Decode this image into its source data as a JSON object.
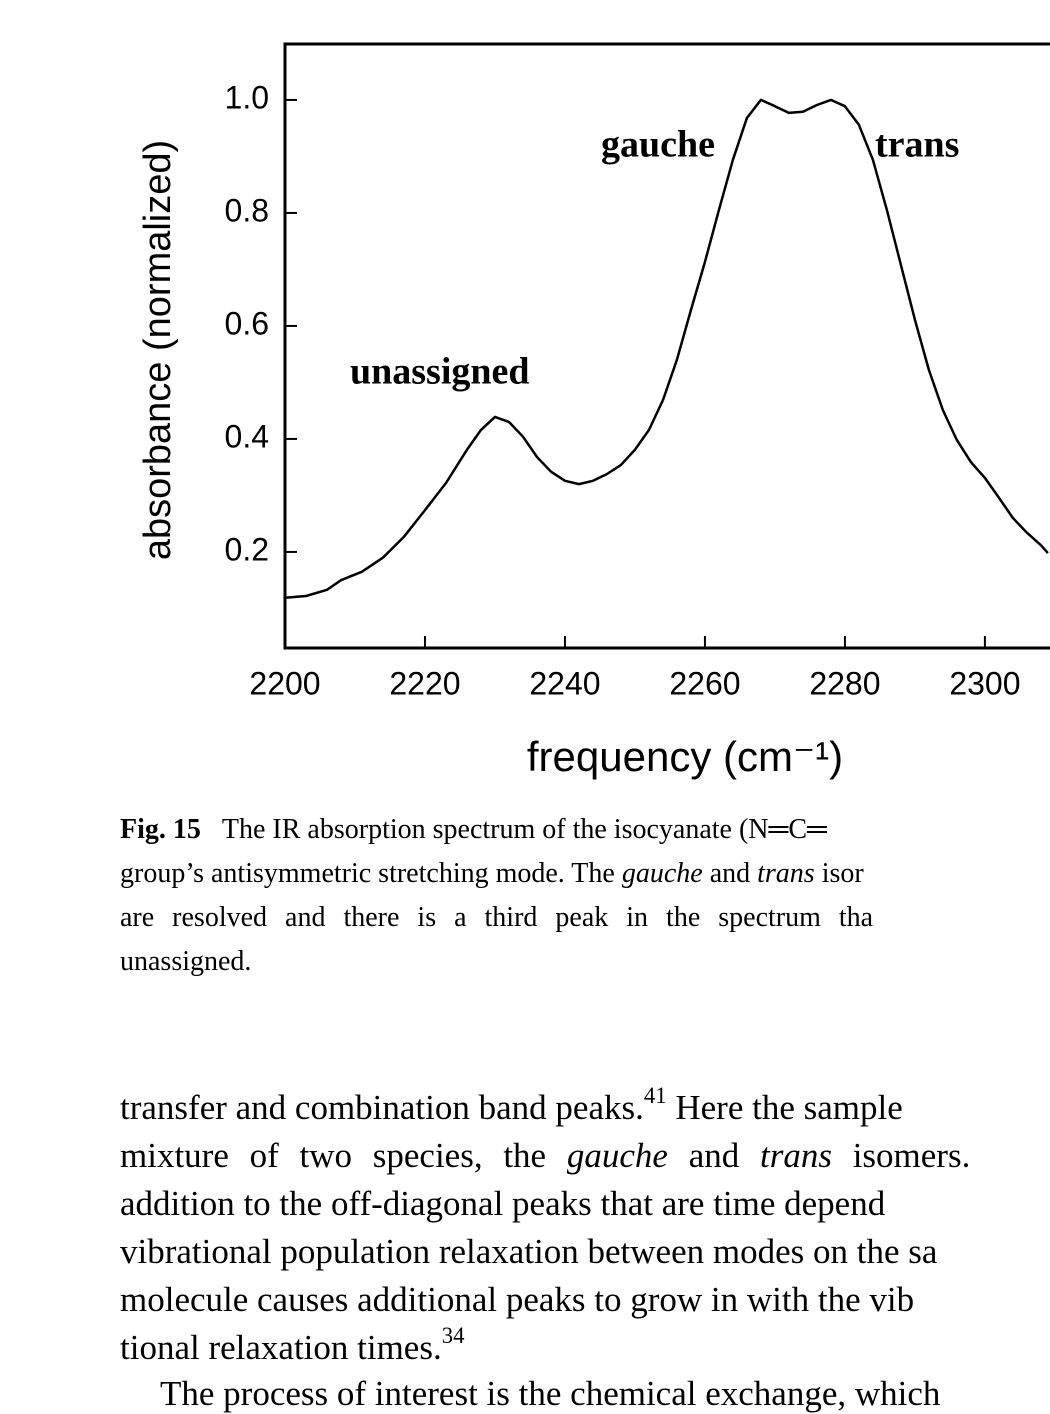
{
  "chart_data": {
    "type": "line",
    "y_label": "absorbance (normalized)",
    "x_label": "frequency (cm⁻¹)",
    "annotations": [
      "gauche",
      "trans",
      "unassigned"
    ],
    "color": "#000000",
    "x": [
      2200,
      2203,
      2206,
      2208,
      2211,
      2214,
      2217,
      2220,
      2223,
      2226,
      2228,
      2230,
      2232,
      2234,
      2236,
      2238,
      2240,
      2242,
      2244,
      2246,
      2248,
      2250,
      2252,
      2254,
      2256,
      2258,
      2260,
      2262,
      2264,
      2266,
      2268,
      2270,
      2272,
      2274,
      2276,
      2278,
      2280,
      2282,
      2284,
      2286,
      2288,
      2290,
      2292,
      2294,
      2296,
      2298,
      2300,
      2302,
      2304,
      2306,
      2308,
      2309
    ],
    "values": [
      0.119,
      0.122,
      0.133,
      0.15,
      0.165,
      0.19,
      0.227,
      0.274,
      0.322,
      0.381,
      0.416,
      0.439,
      0.43,
      0.404,
      0.368,
      0.342,
      0.326,
      0.32,
      0.326,
      0.338,
      0.354,
      0.381,
      0.416,
      0.469,
      0.54,
      0.628,
      0.713,
      0.805,
      0.894,
      0.968,
      1.0,
      0.989,
      0.977,
      0.979,
      0.991,
      1.0,
      0.989,
      0.956,
      0.894,
      0.805,
      0.708,
      0.611,
      0.522,
      0.451,
      0.398,
      0.359,
      0.331,
      0.296,
      0.26,
      0.234,
      0.212,
      0.198
    ],
    "xlim": [
      2200,
      2309.3
    ],
    "ylim": [
      0.03,
      1.099
    ],
    "xticks": [
      2200,
      2220,
      2240,
      2260,
      2280,
      2300
    ],
    "yticks": [
      {
        "value": 0.2,
        "label": "0.2"
      },
      {
        "value": 0.4,
        "label": "0.4"
      },
      {
        "value": 0.6,
        "label": "0.6"
      },
      {
        "value": 0.8,
        "label": "0.8"
      },
      {
        "value": 1.0,
        "label": "1.0"
      }
    ]
  },
  "caption": {
    "label": "Fig. 15",
    "lines": [
      [
        "The IR absorption spectrum of the isocyanate (N═C═"
      ],
      [
        "group’s antisymmetric stretching mode. The ",
        "gauche",
        " and ",
        "trans",
        " isor"
      ],
      [
        "are resolved and there is a third peak in the spectrum tha"
      ],
      [
        "unassigned."
      ]
    ]
  },
  "body": {
    "lines": [
      [
        "transfer and combination band peaks.",
        "41",
        " Here the sample"
      ],
      [
        "mixture of two species, the ",
        "gauche",
        " and ",
        "trans",
        " isomers."
      ],
      [
        "addition to the off-diagonal peaks that are time depend"
      ],
      [
        "vibrational population relaxation between modes on the sa"
      ],
      [
        "molecule causes additional peaks to grow in with the vib"
      ],
      [
        "tional relaxation times.",
        "34"
      ],
      [
        "The process of interest is the chemical exchange, which"
      ]
    ]
  }
}
